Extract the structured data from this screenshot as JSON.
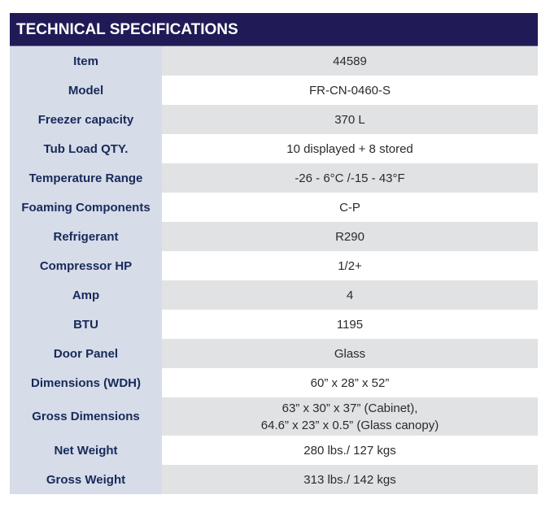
{
  "title": "TECHNICAL SPECIFICATIONS",
  "colors": {
    "header_bg": "#201b56",
    "label_bg": "#d6dce8",
    "label_text": "#172a5a",
    "shaded_row": "#e1e2e3"
  },
  "rows": [
    {
      "label": "Item",
      "value": "44589"
    },
    {
      "label": "Model",
      "value": "FR-CN-0460-S"
    },
    {
      "label": "Freezer capacity",
      "value": "370 L"
    },
    {
      "label": "Tub Load QTY.",
      "value": "10 displayed + 8 stored"
    },
    {
      "label": "Temperature Range",
      "value": "-26 - 6°C /-15 - 43°F"
    },
    {
      "label": "Foaming Components",
      "value": "C-P"
    },
    {
      "label": "Refrigerant",
      "value": "R290"
    },
    {
      "label": "Compressor HP",
      "value": "1/2+"
    },
    {
      "label": "Amp",
      "value": "4"
    },
    {
      "label": "BTU",
      "value": "1195"
    },
    {
      "label": "Door Panel",
      "value": "Glass"
    },
    {
      "label": "Dimensions (WDH)",
      "value": "60” x 28” x 52”"
    },
    {
      "label": "Gross Dimensions",
      "value": "63” x 30” x 37” (Cabinet),",
      "value2": "64.6” x 23” x 0.5” (Glass canopy)"
    },
    {
      "label": "Net Weight",
      "value": "280 lbs./ 127 kgs"
    },
    {
      "label": "Gross Weight",
      "value": "313 lbs./ 142 kgs"
    }
  ]
}
